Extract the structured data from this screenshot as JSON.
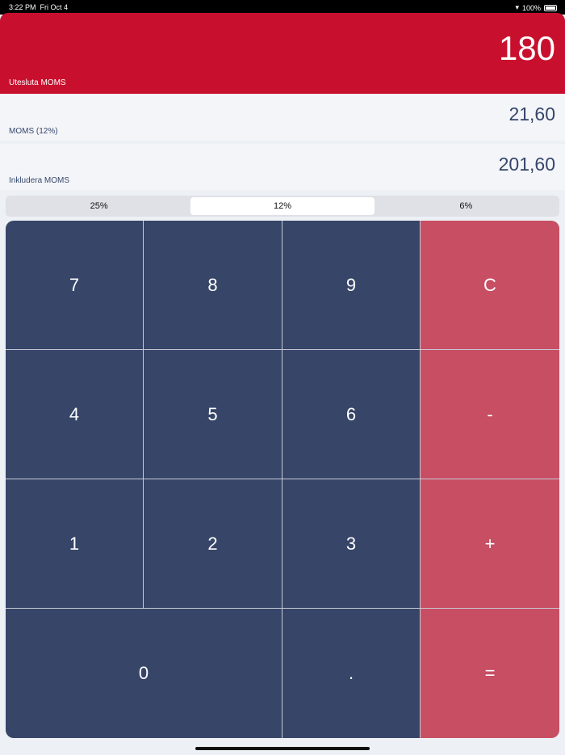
{
  "status": {
    "time": "3:22 PM",
    "date": "Fri Oct 4",
    "battery": "100%"
  },
  "excl": {
    "value": "180",
    "label": "Utesluta MOMS"
  },
  "vat": {
    "value": "21,60",
    "label": "MOMS (12%)"
  },
  "incl": {
    "value": "201,60",
    "label": "Inkludera MOMS"
  },
  "rates": [
    "25%",
    "12%",
    "6%"
  ],
  "selected_rate": "12%",
  "keys": {
    "k7": "7",
    "k8": "8",
    "k9": "9",
    "clear": "C",
    "k4": "4",
    "k5": "5",
    "k6": "6",
    "minus": "-",
    "k1": "1",
    "k2": "2",
    "k3": "3",
    "plus": "+",
    "k0": "0",
    "dot": ".",
    "equals": "="
  },
  "colors": {
    "accent": "#c8102e",
    "keys": "#364568",
    "operators": "#c74e63"
  }
}
